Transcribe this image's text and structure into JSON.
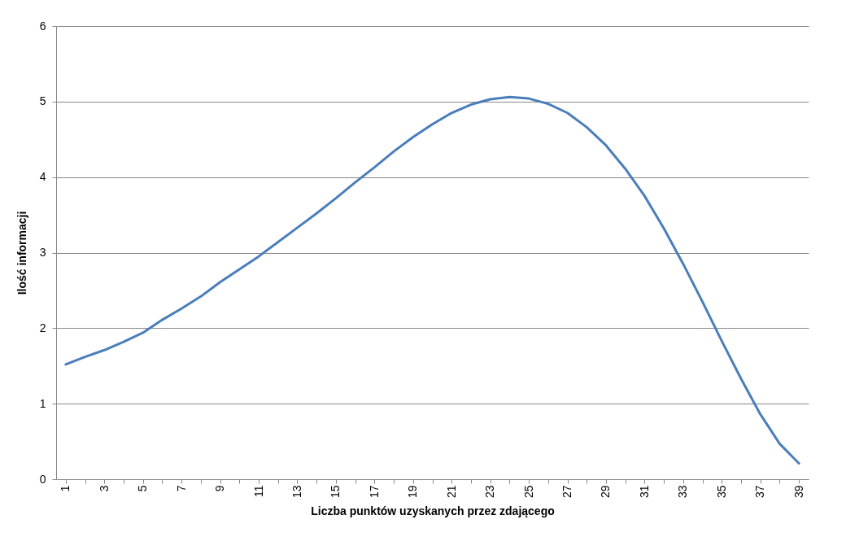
{
  "chart_data": {
    "type": "line",
    "xlabel": "Liczba punktów uzyskanych przez zdającego",
    "ylabel": "Ilość informacji",
    "categories": [
      "1",
      null,
      "3",
      null,
      "5",
      null,
      "7",
      null,
      "9",
      null,
      "11",
      null,
      "13",
      null,
      "15",
      null,
      "17",
      null,
      "19",
      null,
      "21",
      null,
      "23",
      null,
      "25",
      null,
      "27",
      null,
      "29",
      null,
      "31",
      null,
      "33",
      null,
      "35",
      null,
      "37",
      null,
      "39"
    ],
    "series": [
      {
        "color": "#4a7ebb",
        "values": [
          1.52,
          1.62,
          1.71,
          1.82,
          1.94,
          2.11,
          2.26,
          2.42,
          2.61,
          2.78,
          2.95,
          3.14,
          3.33,
          3.52,
          3.72,
          3.93,
          4.13,
          4.34,
          4.53,
          4.7,
          4.85,
          4.96,
          5.03,
          5.06,
          5.04,
          4.97,
          4.85,
          4.66,
          4.42,
          4.11,
          3.75,
          3.32,
          2.85,
          2.35,
          1.83,
          1.33,
          0.86,
          0.47,
          0.21
        ]
      }
    ],
    "ylim": [
      0,
      6
    ],
    "yticks": [
      0,
      1,
      2,
      3,
      4,
      5,
      6
    ],
    "grid": "y",
    "marker": "none",
    "line_style": "solid"
  }
}
